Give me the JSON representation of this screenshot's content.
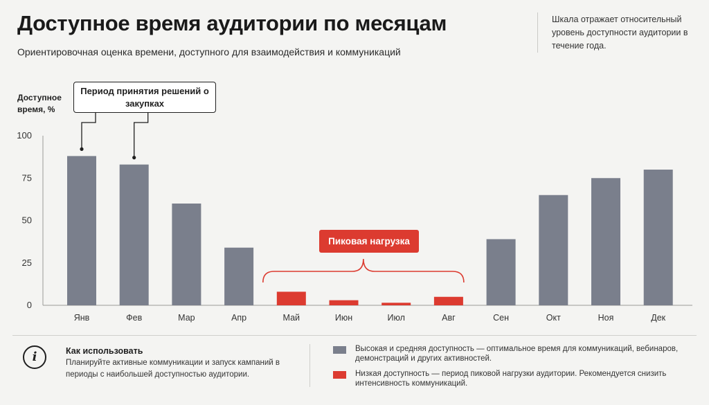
{
  "header": {
    "title": "Доступное время аудитории по месяцам",
    "subtitle": "Ориентировочная оценка времени, доступного для взаимодействия и коммуникаций",
    "note": "Шкала отражает относительный уровень доступности аудитории в течение года."
  },
  "chart_data": {
    "type": "bar",
    "ylabel": "Доступное время, %",
    "ylim": [
      0,
      100
    ],
    "yticks": [
      0,
      25,
      50,
      75,
      100
    ],
    "categories": [
      "Янв",
      "Фев",
      "Мар",
      "Апр",
      "Май",
      "Июн",
      "Июл",
      "Авг",
      "Сен",
      "Окт",
      "Ноя",
      "Дек"
    ],
    "values": [
      88,
      83,
      60,
      34,
      8,
      3,
      1.5,
      5,
      39,
      65,
      75,
      80
    ],
    "availability": [
      "high",
      "high",
      "high",
      "high",
      "low",
      "low",
      "low",
      "low",
      "high",
      "high",
      "high",
      "high"
    ],
    "colors": {
      "high": "#7a7f8c",
      "low": "#dc3b30"
    },
    "grid": false,
    "annotations": {
      "decision_callout": "Период принятия решений о закупках",
      "peak_label": "Пиковая нагрузка"
    }
  },
  "footer": {
    "info_icon": "info-icon",
    "howto_title": "Как использовать",
    "howto_text": "Планируйте активные коммуникации и запуск кампаний в периоды с наибольшей доступностью аудитории.",
    "legend": [
      {
        "color": "#7a7f8c",
        "text": "Высокая и средняя доступность — оптимальное время для коммуникаций, вебинаров, демонстраций и других активностей."
      },
      {
        "color": "#dc3b30",
        "text": "Низкая доступность — период пиковой нагрузки аудитории. Рекомендуется снизить интенсивность коммуникаций."
      }
    ]
  }
}
